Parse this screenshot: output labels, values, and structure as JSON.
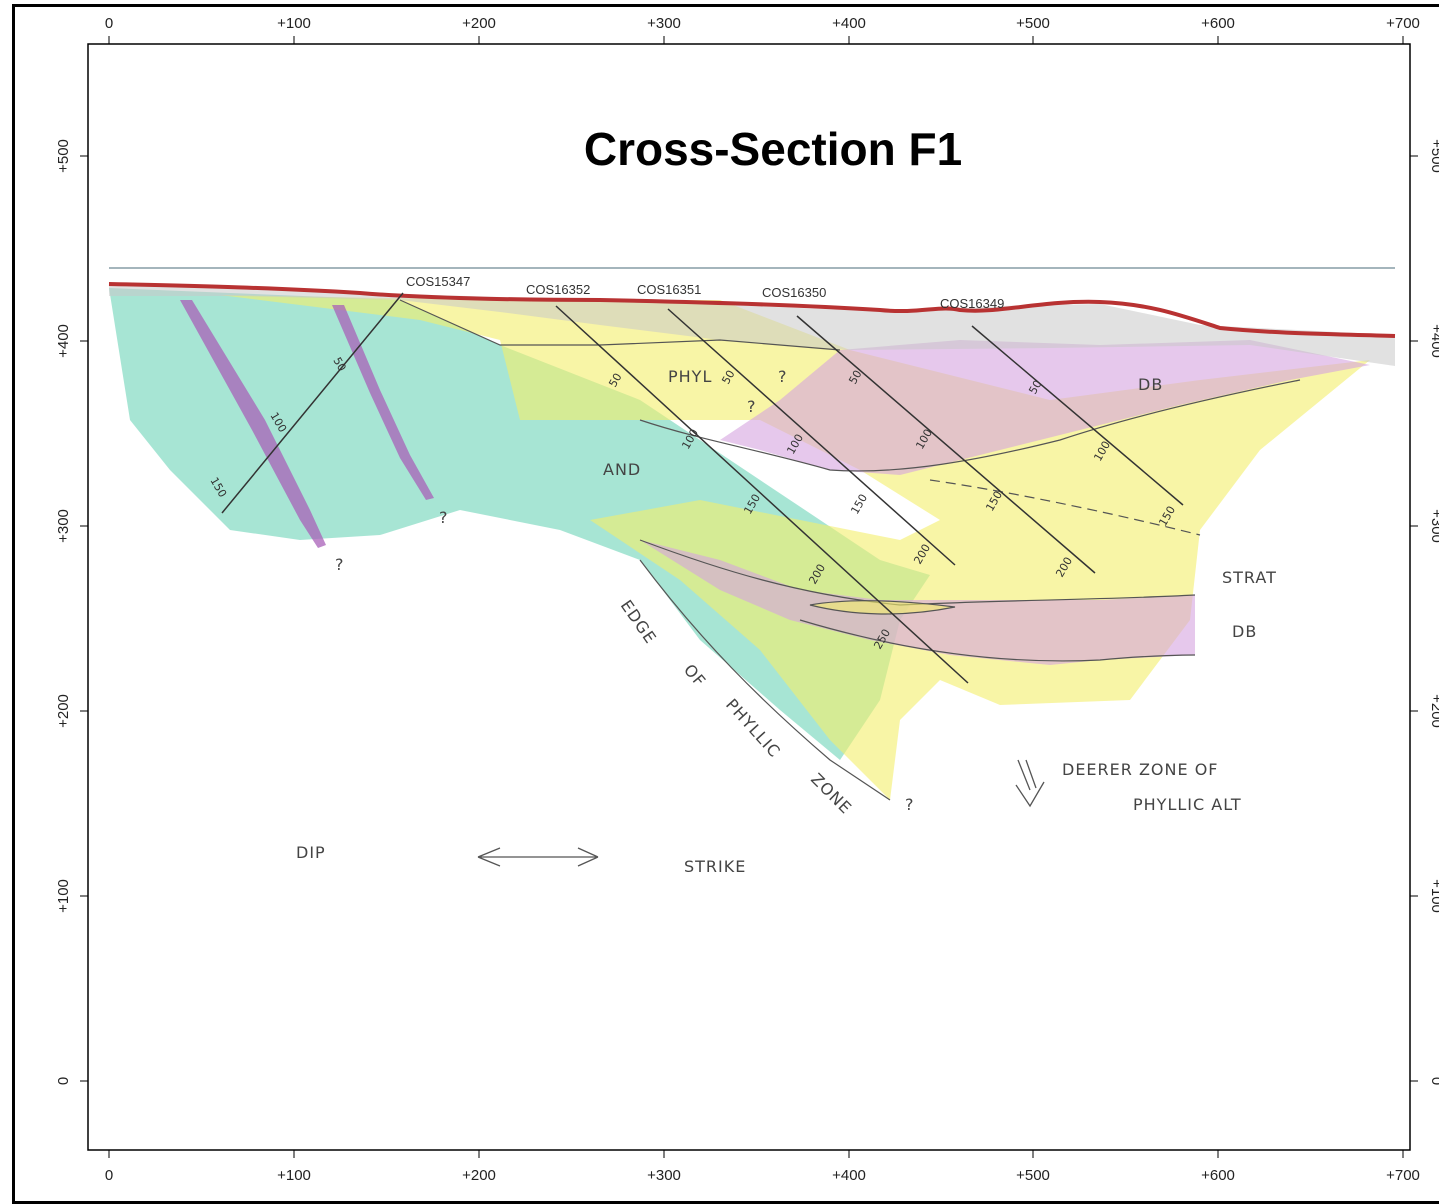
{
  "title": "Cross-Section F1",
  "axes": {
    "x_ticks": [
      "0",
      "+100",
      "+200",
      "+300",
      "+400",
      "+500",
      "+600",
      "+700"
    ],
    "y_ticks": [
      "0",
      "+100",
      "+200",
      "+300",
      "+400",
      "+500"
    ]
  },
  "drillholes": [
    {
      "id": "COS15347",
      "depths": [
        "50",
        "100",
        "150"
      ]
    },
    {
      "id": "COS16352",
      "depths": [
        "50",
        "100",
        "150",
        "200",
        "250"
      ]
    },
    {
      "id": "COS16351",
      "depths": [
        "50",
        "100",
        "150",
        "200"
      ]
    },
    {
      "id": "COS16350",
      "depths": [
        "50",
        "100",
        "150",
        "200"
      ]
    },
    {
      "id": "COS16349",
      "depths": [
        "50",
        "100",
        "150"
      ]
    }
  ],
  "annotations": {
    "phyl": "PHYL",
    "and": "AND",
    "db_top": "DB",
    "strat": "STRAT",
    "db_mid": "DB",
    "edge_line1": "EDGE",
    "edge_line2": "OF",
    "edge_line3": "PHYLLIC",
    "edge_line4": "ZONE",
    "deeper_line1": "DEERER   ZONE   OF",
    "deeper_line2": "PHYLLIC   ALT",
    "dip": "DIP",
    "strike": "STRIKE",
    "question": "?"
  },
  "colors": {
    "topography": "#b83232",
    "andesite": "#5ecfb0",
    "phyllic": "#f3ee6a",
    "diabase": "#d6a4e0",
    "cover": "#c8c8c8",
    "dyke": "#a860b8"
  }
}
